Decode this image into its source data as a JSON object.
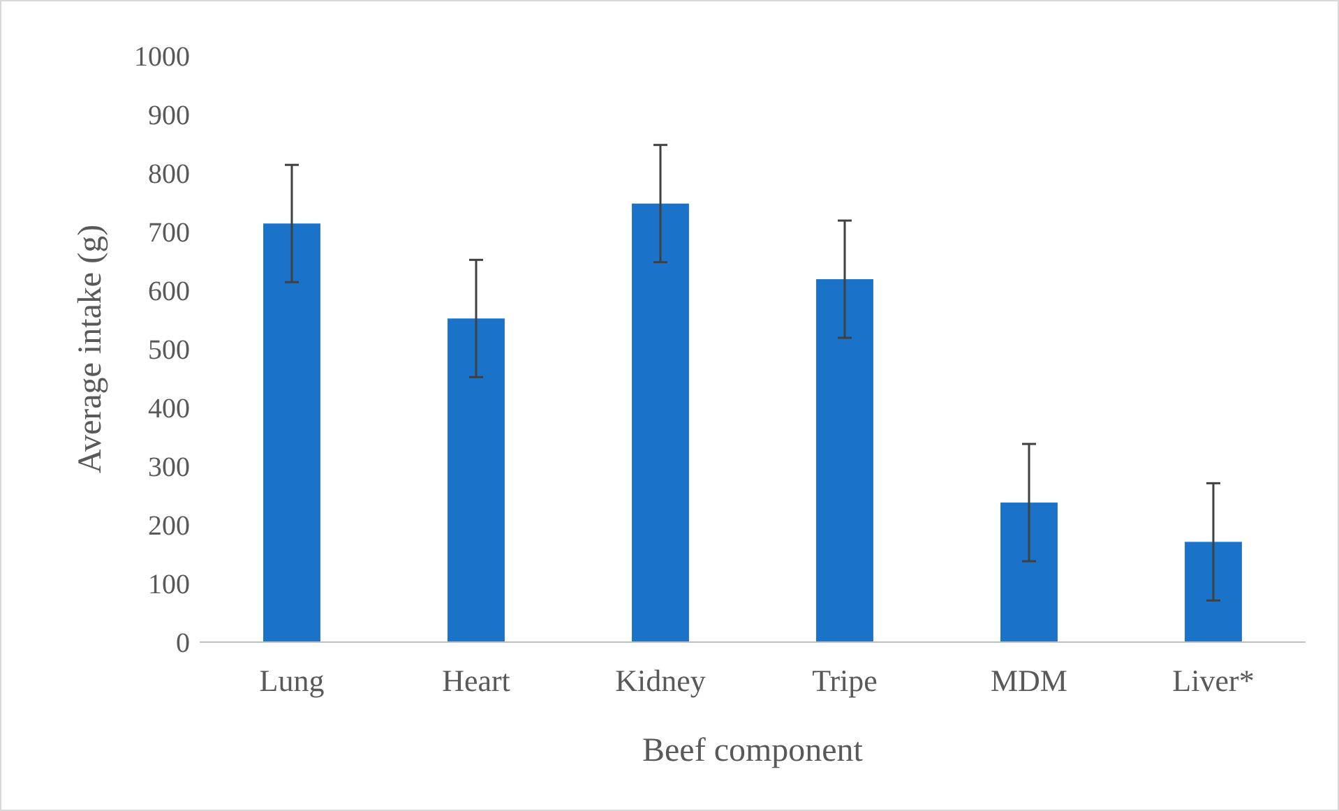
{
  "chart_data": {
    "type": "bar",
    "xlabel": "Beef component",
    "ylabel": "Average intake (g)",
    "categories": [
      "Lung",
      "Heart",
      "Kidney",
      "Tripe",
      "MDM",
      "Liver*"
    ],
    "values": [
      714,
      552,
      748,
      619,
      238,
      171
    ],
    "errors": [
      100,
      100,
      100,
      100,
      100,
      100
    ],
    "color": "#1a72c9",
    "ylim": [
      0,
      1000
    ],
    "yticks": [
      0,
      100,
      200,
      300,
      400,
      500,
      600,
      700,
      800,
      900,
      1000
    ],
    "grid": false
  }
}
